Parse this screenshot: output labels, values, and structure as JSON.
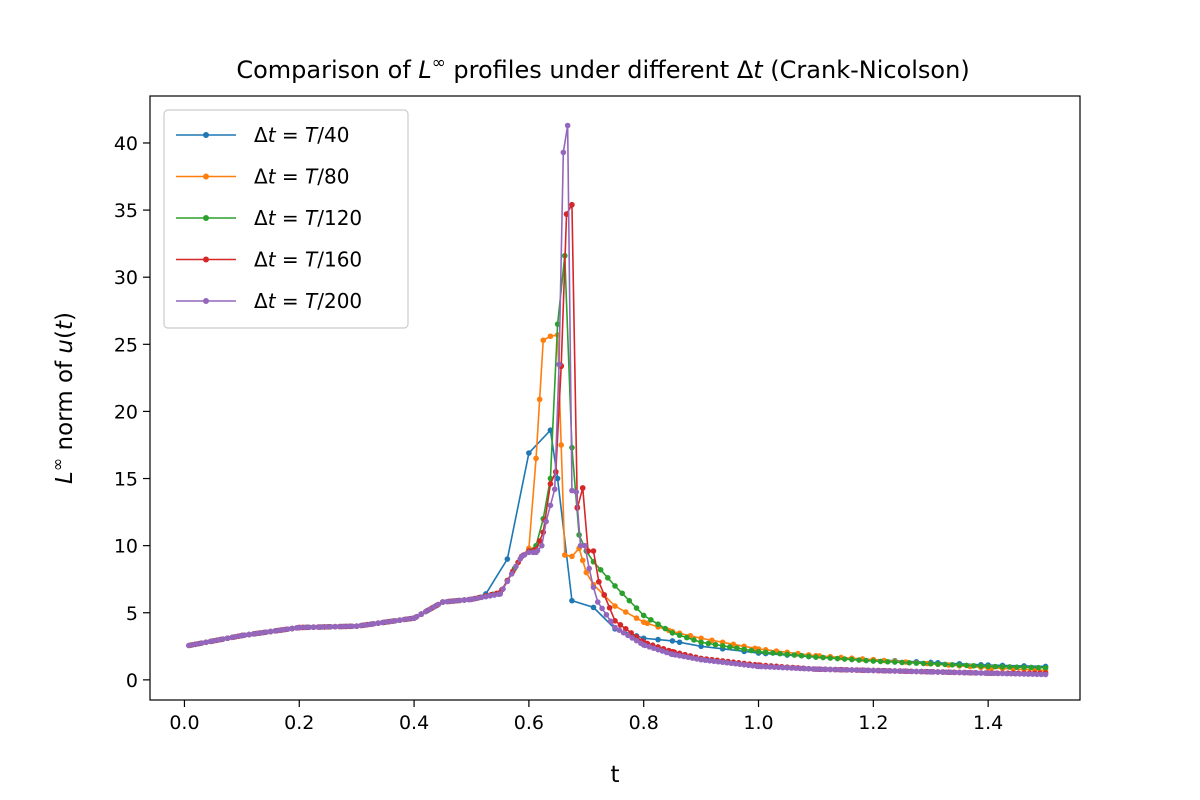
{
  "chart_data": {
    "type": "line",
    "title": "Comparison of L^∞ profiles under different Δt (Crank-Nicolson)",
    "xlabel": "t",
    "ylabel": "L^∞ norm of u(t)",
    "xlim": [
      -0.06,
      1.56
    ],
    "ylim": [
      -1.5,
      43.5
    ],
    "xticks": [
      0.0,
      0.2,
      0.4,
      0.6,
      0.8,
      1.0,
      1.2,
      1.4
    ],
    "xtick_labels": [
      "0.0",
      "0.2",
      "0.4",
      "0.6",
      "0.8",
      "1.0",
      "1.2",
      "1.4"
    ],
    "yticks": [
      0,
      5,
      10,
      15,
      20,
      25,
      30,
      35,
      40
    ],
    "ytick_labels": [
      "0",
      "5",
      "10",
      "15",
      "20",
      "25",
      "30",
      "35",
      "40"
    ],
    "grid": false,
    "legend_position": "top-left",
    "series": [
      {
        "name": "Δt = T/40",
        "color": "#1f77b4",
        "T_div": 40,
        "x": [
          0.0,
          0.1,
          0.2,
          0.3,
          0.4,
          0.45,
          0.5,
          0.525,
          0.5625,
          0.6,
          0.6375,
          0.65,
          0.675,
          0.7125,
          0.75,
          0.8,
          0.85,
          0.9,
          1.0,
          1.1,
          1.2,
          1.3,
          1.4,
          1.5
        ],
        "y": [
          2.5,
          3.3,
          3.9,
          4.0,
          4.6,
          5.8,
          6.0,
          6.4,
          9.0,
          16.9,
          18.6,
          15.0,
          5.9,
          5.4,
          3.8,
          3.1,
          2.9,
          2.5,
          2.0,
          1.7,
          1.5,
          1.3,
          1.1,
          1.0
        ]
      },
      {
        "name": "Δt = T/80",
        "color": "#ff7f0e",
        "T_div": 80,
        "x": [
          0.0,
          0.1,
          0.2,
          0.3,
          0.4,
          0.45,
          0.5,
          0.55,
          0.5875,
          0.6,
          0.6125,
          0.625,
          0.6375,
          0.65,
          0.6625,
          0.675,
          0.6875,
          0.7,
          0.7125,
          0.75,
          0.8,
          0.85,
          0.9,
          1.0,
          1.1,
          1.2,
          1.3,
          1.4,
          1.5
        ],
        "y": [
          2.5,
          3.3,
          3.9,
          4.0,
          4.6,
          5.8,
          6.0,
          6.5,
          9.2,
          9.8,
          16.5,
          25.3,
          25.6,
          25.7,
          9.3,
          9.2,
          9.8,
          8.0,
          7.1,
          5.5,
          4.3,
          3.6,
          3.1,
          2.3,
          1.8,
          1.5,
          1.2,
          0.9,
          0.7
        ]
      },
      {
        "name": "Δt = T/120",
        "color": "#2ca02c",
        "T_div": 120,
        "x": [
          0.0,
          0.1,
          0.2,
          0.3,
          0.4,
          0.45,
          0.5,
          0.55,
          0.5875,
          0.6,
          0.6125,
          0.625,
          0.6375,
          0.65,
          0.6625,
          0.675,
          0.6875,
          0.7,
          0.7125,
          0.75,
          0.8,
          0.85,
          0.9,
          1.0,
          1.1,
          1.2,
          1.3,
          1.4,
          1.5
        ],
        "y": [
          2.5,
          3.3,
          3.9,
          4.0,
          4.6,
          5.8,
          6.0,
          6.5,
          9.2,
          9.6,
          10.0,
          12.0,
          15.0,
          26.5,
          31.6,
          17.3,
          10.8,
          9.6,
          8.8,
          7.0,
          4.8,
          3.5,
          2.8,
          2.1,
          1.7,
          1.4,
          1.2,
          1.0,
          0.9
        ]
      },
      {
        "name": "Δt = T/160",
        "color": "#d62728",
        "T_div": 160,
        "x": [
          0.0,
          0.1,
          0.2,
          0.3,
          0.4,
          0.45,
          0.5,
          0.55,
          0.5875,
          0.6,
          0.6125,
          0.625,
          0.6375,
          0.6469,
          0.6563,
          0.6656,
          0.675,
          0.6844,
          0.6938,
          0.7031,
          0.7125,
          0.7219,
          0.75,
          0.8,
          0.85,
          0.9,
          1.0,
          1.1,
          1.2,
          1.3,
          1.4,
          1.5
        ],
        "y": [
          2.5,
          3.3,
          3.9,
          4.0,
          4.6,
          5.8,
          6.0,
          6.5,
          9.2,
          9.6,
          9.7,
          11.0,
          14.6,
          15.5,
          23.4,
          34.7,
          35.4,
          12.8,
          14.3,
          9.6,
          9.6,
          7.3,
          4.4,
          2.8,
          2.1,
          1.6,
          1.1,
          0.8,
          0.7,
          0.6,
          0.5,
          0.5
        ]
      },
      {
        "name": "Δt = T/200",
        "color": "#9467bd",
        "T_div": 200,
        "x": [
          0.0,
          0.1,
          0.2,
          0.3,
          0.4,
          0.45,
          0.5,
          0.55,
          0.5875,
          0.6,
          0.6125,
          0.6225,
          0.63,
          0.645,
          0.6525,
          0.66,
          0.6675,
          0.675,
          0.6825,
          0.69,
          0.6975,
          0.705,
          0.7125,
          0.72,
          0.75,
          0.8,
          0.85,
          0.9,
          1.0,
          1.1,
          1.2,
          1.3,
          1.4,
          1.5
        ],
        "y": [
          2.5,
          3.3,
          3.9,
          4.0,
          4.6,
          5.8,
          6.0,
          6.4,
          9.2,
          9.5,
          9.5,
          10.0,
          11.8,
          14.2,
          23.5,
          39.3,
          41.3,
          14.1,
          14.0,
          10.0,
          10.0,
          8.3,
          6.9,
          5.8,
          3.9,
          2.6,
          1.9,
          1.5,
          1.0,
          0.8,
          0.7,
          0.6,
          0.5,
          0.4
        ]
      }
    ]
  }
}
